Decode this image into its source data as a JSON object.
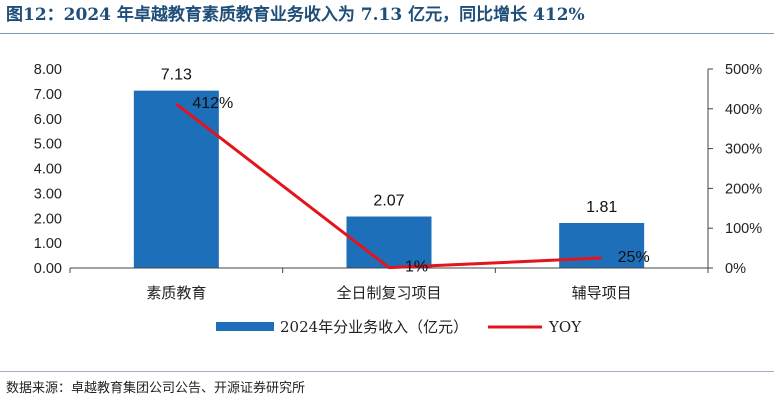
{
  "figure": {
    "title": "图12：2024 年卓越教育素质教育业务收入为 7.13 亿元，同比增长 412%",
    "source": "数据来源：卓越教育集团公司公告、开源证券研究所"
  },
  "colors": {
    "bar": "#1d6fba",
    "line": "#e3141b",
    "title": "#1f4e79"
  },
  "chart_data": {
    "type": "bar",
    "categories": [
      "素质教育",
      "全日制复习项目",
      "辅导项目"
    ],
    "series": [
      {
        "name": "2024年分业务收入（亿元）",
        "type": "bar",
        "axis": "left",
        "values": [
          7.13,
          2.07,
          1.81
        ],
        "labels": [
          "7.13",
          "2.07",
          "1.81"
        ]
      },
      {
        "name": "YOY",
        "type": "line",
        "axis": "right",
        "values": [
          412,
          1,
          25
        ],
        "labels": [
          "412%",
          "1%",
          "25%"
        ]
      }
    ],
    "y_left": {
      "min": 0,
      "max": 8,
      "step": 1,
      "ticks": [
        "0.00",
        "1.00",
        "2.00",
        "3.00",
        "4.00",
        "5.00",
        "6.00",
        "7.00",
        "8.00"
      ]
    },
    "y_right": {
      "min": 0,
      "max": 500,
      "step": 100,
      "ticks": [
        "0%",
        "100%",
        "200%",
        "300%",
        "400%",
        "500%"
      ]
    },
    "legend_position": "bottom",
    "grid": false
  }
}
